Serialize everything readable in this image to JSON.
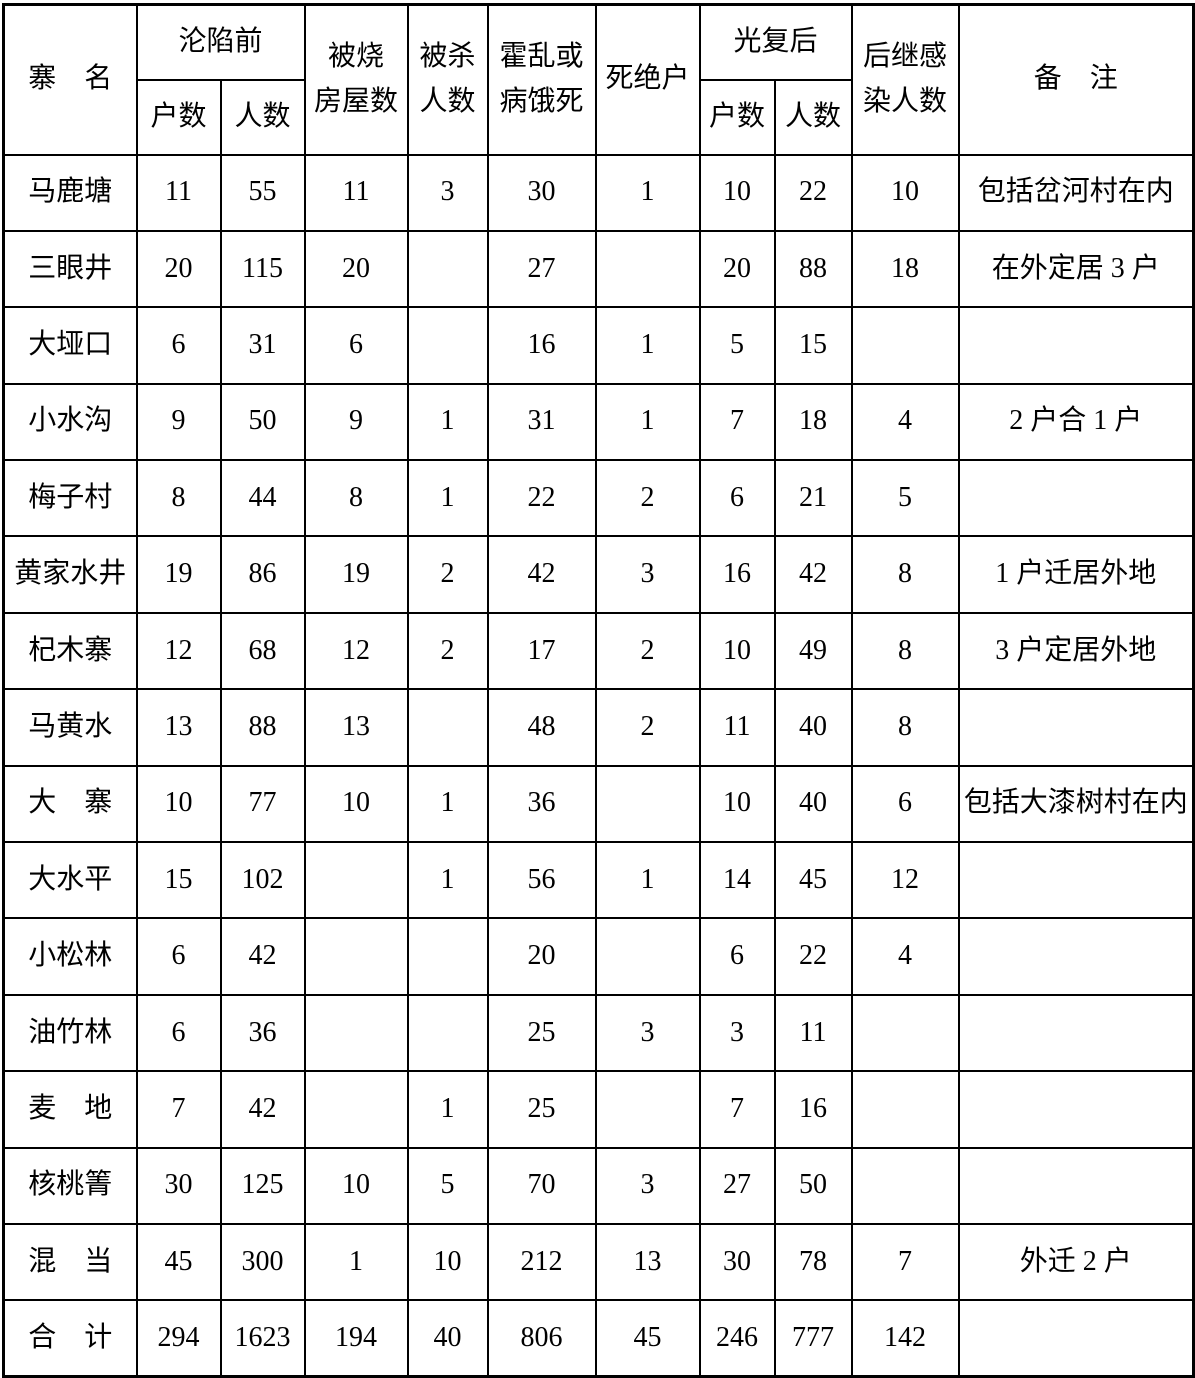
{
  "header": {
    "row1": [
      {
        "text": "寨　名"
      },
      {
        "text": "沦陷前"
      },
      {
        "lines": [
          "被烧",
          "房屋数"
        ]
      },
      {
        "lines": [
          "被杀",
          "人数"
        ]
      },
      {
        "lines": [
          "霍乱或",
          "病饿死"
        ]
      },
      {
        "text": "死绝户"
      },
      {
        "text": "光复后"
      },
      {
        "lines": [
          "后继感",
          "染人数"
        ]
      },
      {
        "text": "备　注"
      }
    ],
    "row2": [
      "户数",
      "人数",
      "户数",
      "人数"
    ]
  },
  "table": {
    "rows": [
      [
        "马鹿塘",
        11,
        55,
        11,
        3,
        30,
        1,
        10,
        22,
        10,
        "包括岔河村在内"
      ],
      [
        "三眼井",
        20,
        115,
        20,
        null,
        27,
        null,
        20,
        88,
        18,
        "在外定居 3 户"
      ],
      [
        "大垭口",
        6,
        31,
        6,
        null,
        16,
        1,
        5,
        15,
        null,
        null
      ],
      [
        "小水沟",
        9,
        50,
        9,
        1,
        31,
        1,
        7,
        18,
        4,
        "2 户合 1 户"
      ],
      [
        "梅子村",
        8,
        44,
        8,
        1,
        22,
        2,
        6,
        21,
        5,
        null
      ],
      [
        "黄家水井",
        19,
        86,
        19,
        2,
        42,
        3,
        16,
        42,
        8,
        "1 户迁居外地"
      ],
      [
        "杞木寨",
        12,
        68,
        12,
        2,
        17,
        2,
        10,
        49,
        8,
        "3 户定居外地"
      ],
      [
        "马黄水",
        13,
        88,
        13,
        null,
        48,
        2,
        11,
        40,
        8,
        null
      ],
      [
        "大　寨",
        10,
        77,
        10,
        1,
        36,
        null,
        10,
        40,
        6,
        "包括大漆树村在内"
      ],
      [
        "大水平",
        15,
        102,
        null,
        1,
        56,
        1,
        14,
        45,
        12,
        null
      ],
      [
        "小松林",
        6,
        42,
        null,
        null,
        20,
        null,
        6,
        22,
        4,
        null
      ],
      [
        "油竹林",
        6,
        36,
        null,
        null,
        25,
        3,
        3,
        11,
        null,
        null
      ],
      [
        "麦　地",
        7,
        42,
        null,
        1,
        25,
        null,
        7,
        16,
        null,
        null
      ],
      [
        "核桃箐",
        30,
        125,
        10,
        5,
        70,
        3,
        27,
        50,
        null,
        null
      ],
      [
        "混　当",
        45,
        300,
        1,
        10,
        212,
        13,
        30,
        78,
        7,
        "外迁 2 户"
      ],
      [
        "合　计",
        294,
        1623,
        194,
        40,
        806,
        45,
        246,
        777,
        142,
        null
      ]
    ]
  }
}
